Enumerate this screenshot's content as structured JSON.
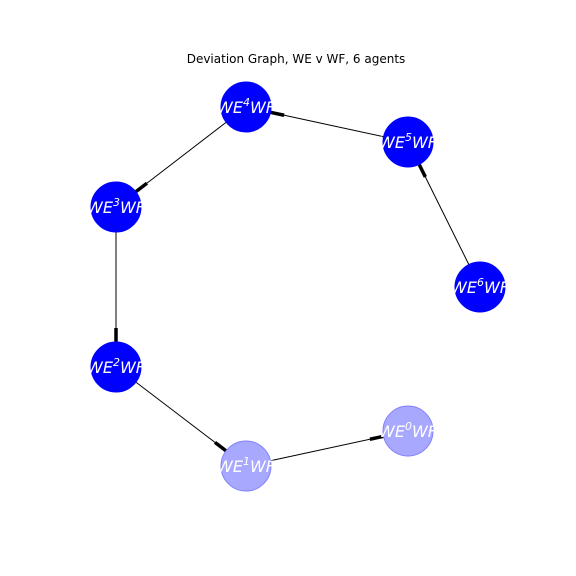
{
  "title": "Deviation Graph, WE v WF, 6 agents",
  "colors": {
    "node_strong": "#0000ff",
    "node_faint": "#a8a8ff",
    "node_faint_stroke": "#8080ff",
    "edge": "#000000",
    "label": "#ffffff"
  },
  "nodes": [
    {
      "id": "n0",
      "prefix": "WE",
      "sup": "0",
      "suffix": "WF",
      "style": "faint"
    },
    {
      "id": "n1",
      "prefix": "WE",
      "sup": "1",
      "suffix": "WF",
      "style": "faint"
    },
    {
      "id": "n2",
      "prefix": "WE",
      "sup": "2",
      "suffix": "WF",
      "style": "strong"
    },
    {
      "id": "n3",
      "prefix": "WE",
      "sup": "3",
      "suffix": "WF",
      "style": "strong"
    },
    {
      "id": "n4",
      "prefix": "WE",
      "sup": "4",
      "suffix": "WF",
      "style": "strong"
    },
    {
      "id": "n5",
      "prefix": "WE",
      "sup": "5",
      "suffix": "WF",
      "style": "strong"
    },
    {
      "id": "n6",
      "prefix": "WE",
      "sup": "6",
      "suffix": "WF",
      "style": "strong"
    }
  ],
  "edges": [
    {
      "from": "n1",
      "to": "n0"
    },
    {
      "from": "n2",
      "to": "n1"
    },
    {
      "from": "n3",
      "to": "n2"
    },
    {
      "from": "n4",
      "to": "n3"
    },
    {
      "from": "n5",
      "to": "n4"
    },
    {
      "from": "n6",
      "to": "n5"
    }
  ]
}
